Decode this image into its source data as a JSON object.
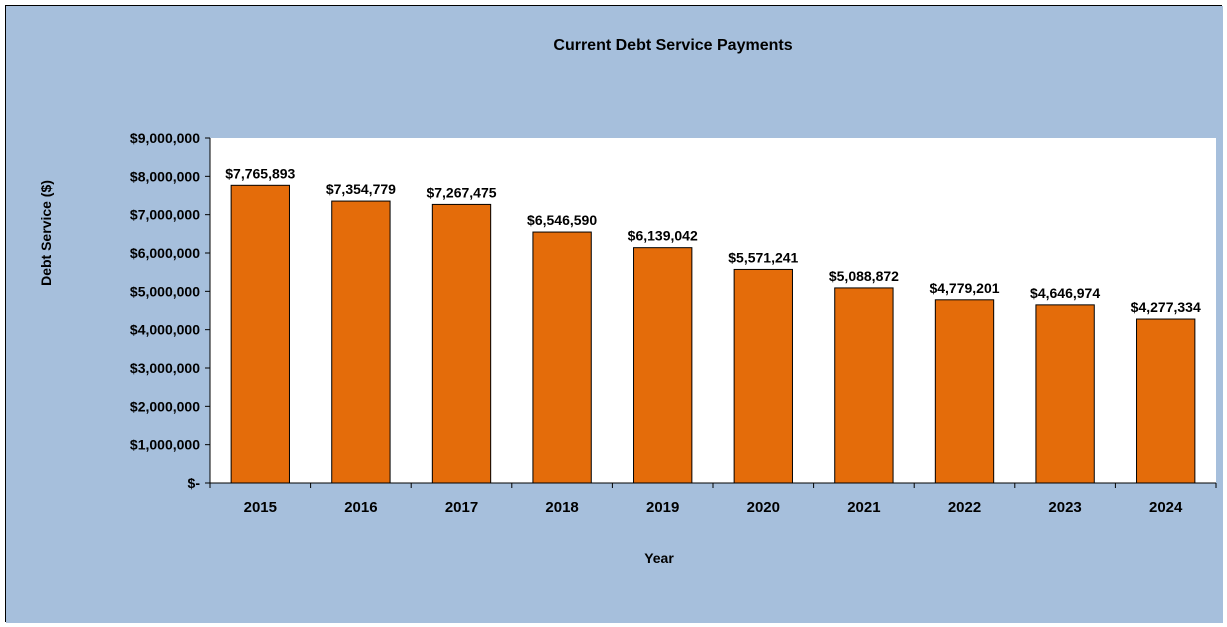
{
  "chart_data": {
    "type": "bar",
    "title": "Current Debt Service Payments",
    "xlabel": "Year",
    "ylabel": "Debt Service ($)",
    "categories": [
      "2015",
      "2016",
      "2017",
      "2018",
      "2019",
      "2020",
      "2021",
      "2022",
      "2023",
      "2024"
    ],
    "values": [
      7765893,
      7354779,
      7267475,
      6546590,
      6139042,
      5571241,
      5088872,
      4779201,
      4646974,
      4277334
    ],
    "data_labels": [
      "$7,765,893",
      "$7,354,779",
      "$7,267,475",
      "$6,546,590",
      "$6,139,042",
      "$5,571,241",
      "$5,088,872",
      "$4,779,201",
      "$4,646,974",
      "$4,277,334"
    ],
    "y_tick_values": [
      0,
      1000000,
      2000000,
      3000000,
      4000000,
      5000000,
      6000000,
      7000000,
      8000000,
      9000000
    ],
    "y_tick_labels": [
      "$-",
      "$1,000,000",
      "$2,000,000",
      "$3,000,000",
      "$4,000,000",
      "$5,000,000",
      "$6,000,000",
      "$7,000,000",
      "$8,000,000",
      "$9,000,000"
    ],
    "ylim": [
      0,
      9000000
    ],
    "grid": false,
    "legend": "none",
    "colors": {
      "chart_background": "#a6bfdc",
      "plot_background": "#ffffff",
      "bar_fill": "#e46c0a",
      "bar_stroke": "#000000"
    }
  }
}
